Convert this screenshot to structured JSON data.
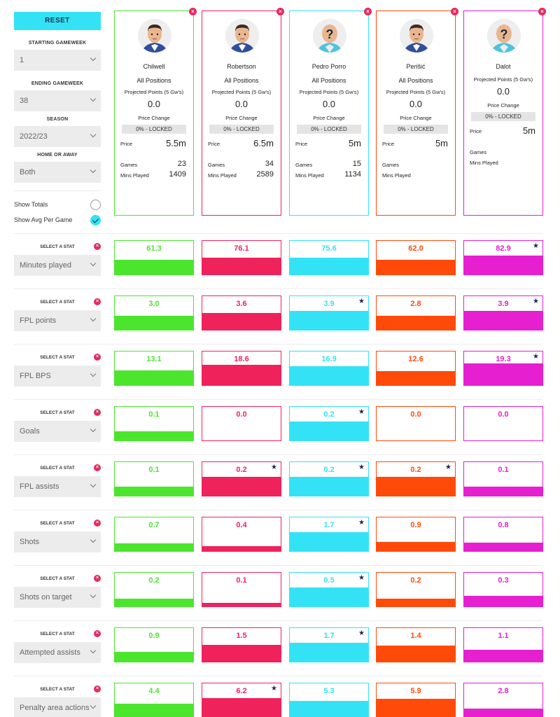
{
  "controls": {
    "reset_label": "RESET",
    "starting_gameweek": {
      "label": "STARTING GAMEWEEK",
      "value": "1"
    },
    "ending_gameweek": {
      "label": "ENDING GAMEWEEK",
      "value": "38"
    },
    "season": {
      "label": "SEASON",
      "value": "2022/23"
    },
    "home_away": {
      "label": "HOME OR AWAY",
      "value": "Both"
    },
    "show_totals": {
      "label": "Show Totals",
      "checked": false
    },
    "show_avg": {
      "label": "Show Avg Per Game",
      "checked": true
    }
  },
  "card_labels": {
    "projected": "Projected Points (5 Gw's)",
    "price_change": "Price Change",
    "price": "Price",
    "games": "Games",
    "mins": "Mins Played"
  },
  "players": [
    {
      "name": "Chilwell",
      "position": "All Positions",
      "projected": "0.0",
      "locked": "0% - LOCKED",
      "price": "5.5m",
      "games": "23",
      "mins": "1409",
      "color": "#4be52e",
      "avatar": "player"
    },
    {
      "name": "Robertson",
      "position": "All Positions",
      "projected": "0.0",
      "locked": "0% - LOCKED",
      "price": "6.5m",
      "games": "34",
      "mins": "2589",
      "color": "#f0225b",
      "avatar": "player"
    },
    {
      "name": "Pedro Porro",
      "position": "All Positions",
      "projected": "0.0",
      "locked": "0% - LOCKED",
      "price": "5m",
      "games": "15",
      "mins": "1134",
      "color": "#33e3f5",
      "avatar": "unknown"
    },
    {
      "name": "Perišić",
      "position": "All Positions",
      "projected": "0.0",
      "locked": "0% - LOCKED",
      "price": "5m",
      "games": "",
      "mins": "",
      "color": "#ff4a0a",
      "avatar": "player"
    },
    {
      "name": "Dalot",
      "position": "",
      "projected": "0.0",
      "locked": "0% - LOCKED",
      "price": "5m",
      "games": "",
      "mins": "",
      "color": "#e61fd0",
      "avatar": "unknown"
    }
  ],
  "stat_select_label": "SELECT A STAT",
  "stats": [
    {
      "name": "Minutes played",
      "values": [
        "61.3",
        "76.1",
        "75.6",
        "62.0",
        "82.9"
      ],
      "fill": [
        0.44,
        0.5,
        0.5,
        0.44,
        0.56
      ],
      "star": [
        false,
        false,
        false,
        false,
        true
      ]
    },
    {
      "name": "FPL points",
      "values": [
        "3.0",
        "3.6",
        "3.9",
        "2.8",
        "3.9"
      ],
      "fill": [
        0.42,
        0.5,
        0.56,
        0.42,
        0.56
      ],
      "star": [
        false,
        false,
        true,
        false,
        true
      ]
    },
    {
      "name": "FPL BPS",
      "values": [
        "13.1",
        "18.6",
        "16.9",
        "12.6",
        "19.3"
      ],
      "fill": [
        0.44,
        0.6,
        0.56,
        0.42,
        0.64
      ],
      "star": [
        false,
        false,
        false,
        false,
        true
      ]
    },
    {
      "name": "Goals",
      "values": [
        "0.1",
        "0.0",
        "0.2",
        "0.0",
        "0.0"
      ],
      "fill": [
        0.28,
        0.0,
        0.56,
        0.0,
        0.0
      ],
      "star": [
        false,
        false,
        true,
        false,
        false
      ]
    },
    {
      "name": "FPL assists",
      "values": [
        "0.1",
        "0.2",
        "0.2",
        "0.2",
        "0.1"
      ],
      "fill": [
        0.28,
        0.56,
        0.56,
        0.56,
        0.28
      ],
      "star": [
        false,
        true,
        true,
        true,
        false
      ]
    },
    {
      "name": "Shots",
      "values": [
        "0.7",
        "0.4",
        "1.7",
        "0.9",
        "0.8"
      ],
      "fill": [
        0.22,
        0.14,
        0.56,
        0.28,
        0.26
      ],
      "star": [
        false,
        false,
        true,
        false,
        false
      ]
    },
    {
      "name": "Shots on target",
      "values": [
        "0.2",
        "0.1",
        "0.5",
        "0.2",
        "0.3"
      ],
      "fill": [
        0.22,
        0.1,
        0.56,
        0.22,
        0.32
      ],
      "star": [
        false,
        false,
        true,
        false,
        false
      ]
    },
    {
      "name": "Attempted assists",
      "values": [
        "0.9",
        "1.5",
        "1.7",
        "1.4",
        "1.1"
      ],
      "fill": [
        0.3,
        0.5,
        0.56,
        0.48,
        0.36
      ],
      "star": [
        false,
        false,
        true,
        false,
        false
      ]
    },
    {
      "name": "Penalty area actions",
      "values": [
        "4.4",
        "6.2",
        "5.3",
        "5.9",
        "2.8"
      ],
      "fill": [
        0.4,
        0.56,
        0.48,
        0.54,
        0.26
      ],
      "star": [
        false,
        true,
        false,
        false,
        false
      ]
    }
  ]
}
